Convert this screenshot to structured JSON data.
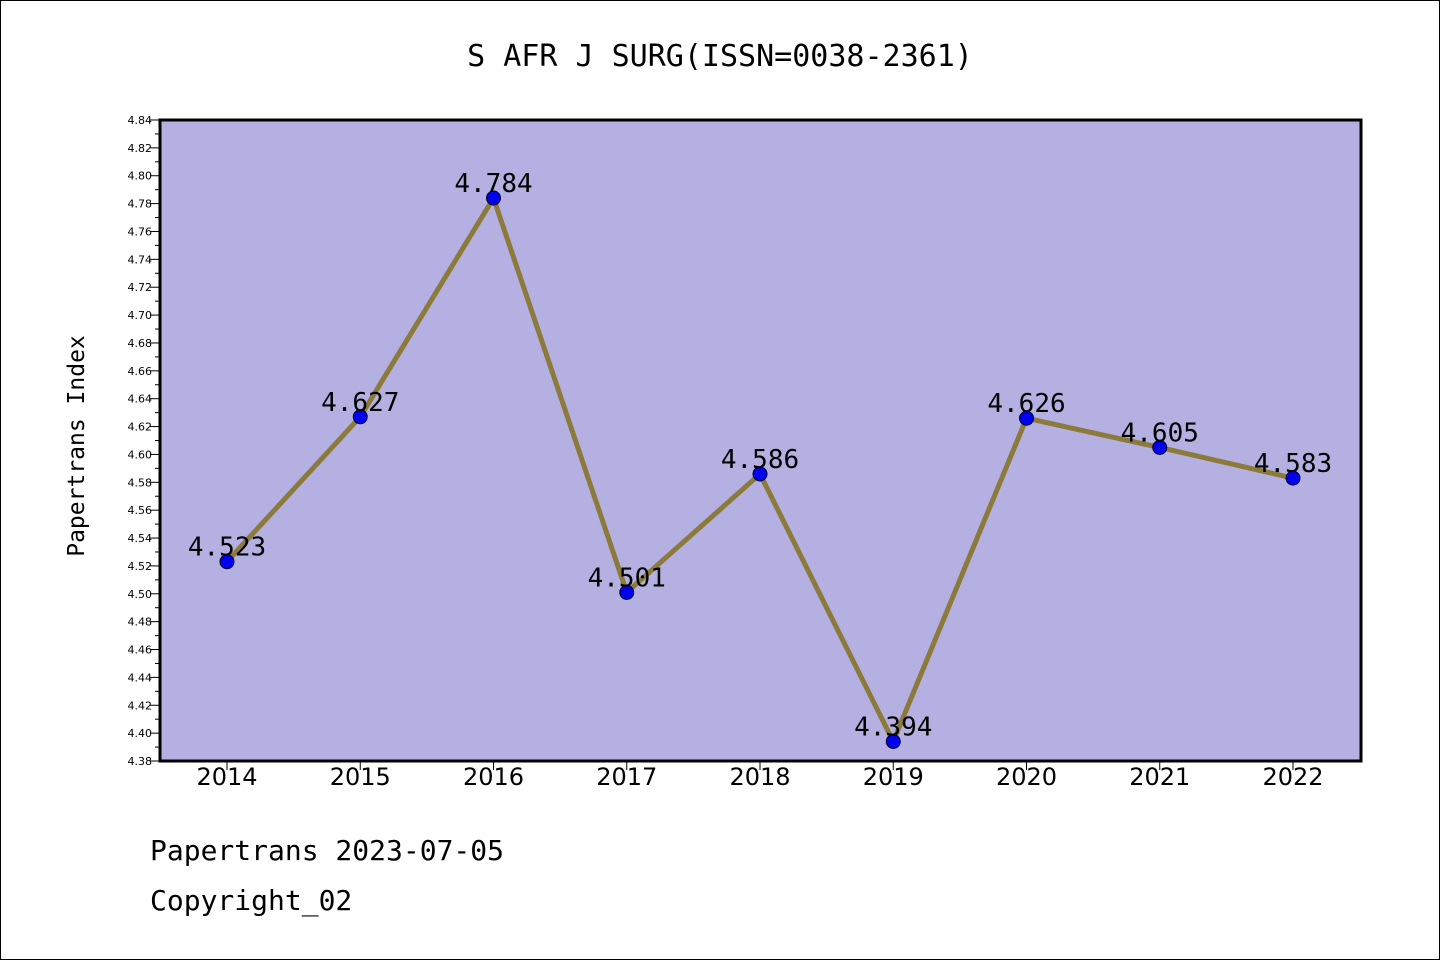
{
  "chart_data": {
    "type": "line",
    "title": "S AFR J SURG(ISSN=0038-2361)",
    "xlabel": "",
    "ylabel": "Papertrans Index",
    "categories": [
      "2014",
      "2015",
      "2016",
      "2017",
      "2018",
      "2019",
      "2020",
      "2021",
      "2022"
    ],
    "values": [
      4.523,
      4.627,
      4.784,
      4.501,
      4.586,
      4.394,
      4.626,
      4.605,
      4.583
    ],
    "data_labels": [
      "4.523",
      "4.627",
      "4.784",
      "4.501",
      "4.586",
      "4.394",
      "4.626",
      "4.605",
      "4.583"
    ],
    "ylim": [
      4.38,
      4.84
    ],
    "yticks": [
      "4.38",
      "4.40",
      "4.42",
      "4.44",
      "4.46",
      "4.48",
      "4.50",
      "4.52",
      "4.54",
      "4.56",
      "4.58",
      "4.60",
      "4.62",
      "4.64",
      "4.66",
      "4.68",
      "4.70",
      "4.72",
      "4.74",
      "4.76",
      "4.78",
      "4.80",
      "4.82",
      "4.84"
    ],
    "grid": false,
    "legend": "none",
    "colors": {
      "plot_background": "#b5b0e2",
      "line": "#8b7a3a",
      "marker": "#0000ee"
    }
  },
  "footer": {
    "date_line": "Papertrans 2023-07-05",
    "copyright_line": "Copyright_02"
  }
}
